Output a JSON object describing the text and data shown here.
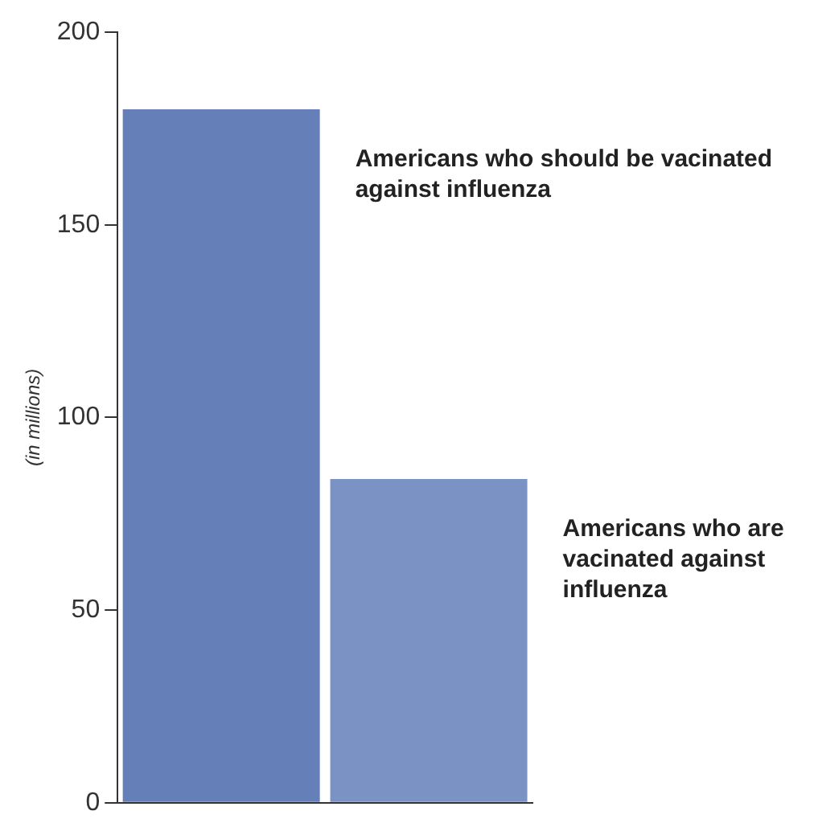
{
  "chart_data": {
    "type": "bar",
    "ylabel": "(in millions)",
    "categories": [
      null,
      null
    ],
    "series": [
      {
        "name": "Americans who should be vacinated against influenza",
        "color": "#6580b8",
        "values": [
          180,
          null
        ]
      },
      {
        "name": "Americans who are vacinated against influenza",
        "color": "#7a93c4",
        "values": [
          null,
          84
        ]
      }
    ],
    "ylim": [
      0,
      200
    ],
    "yticks": [
      0,
      50,
      100,
      150,
      200
    ],
    "grid": false,
    "legend": false
  }
}
